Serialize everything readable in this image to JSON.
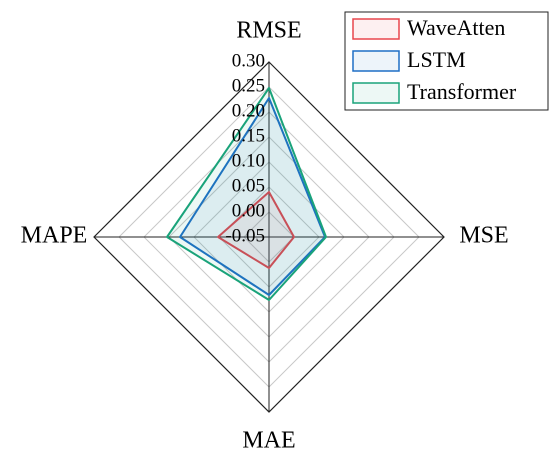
{
  "chart_data": {
    "type": "radar",
    "categories": [
      "RMSE",
      "MSE",
      "MAE",
      "MAPE"
    ],
    "rlim": [
      -0.05,
      0.3
    ],
    "rticks": [
      -0.05,
      {
        "value": 0.0,
        "label": "0.00"
      },
      0.05,
      {
        "value": 0.1,
        "label": "0.10"
      },
      0.15,
      {
        "value": 0.2,
        "label": "0.20"
      },
      0.25,
      {
        "value": 0.3,
        "label": "0.30"
      }
    ],
    "grid": true,
    "legend": "upper right",
    "series": [
      {
        "name": "WaveAtten",
        "color": "#e8464d",
        "values": [
          0.04,
          0.0,
          0.012,
          0.052
        ]
      },
      {
        "name": "LSTM",
        "color": "#1f6fc5",
        "values": [
          0.228,
          0.062,
          0.066,
          0.128
        ]
      },
      {
        "name": "Transformer",
        "color": "#1aa37a",
        "values": [
          0.248,
          0.064,
          0.076,
          0.154
        ]
      }
    ]
  }
}
